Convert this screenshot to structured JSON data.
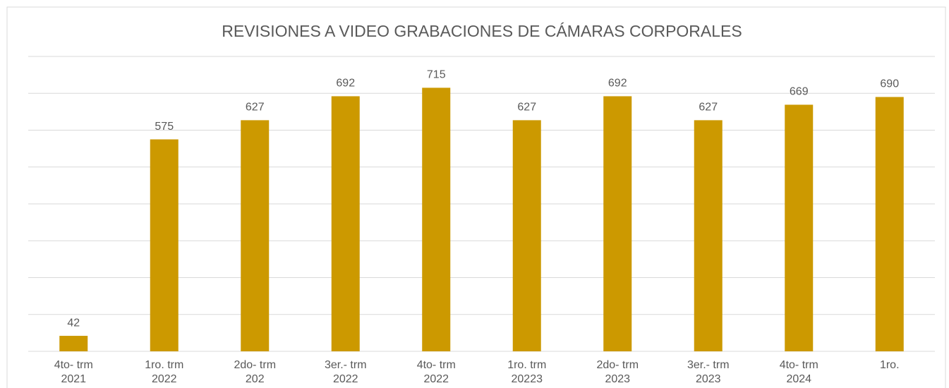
{
  "chart_data": {
    "type": "bar",
    "title": "REVISIONES A VIDEO GRABACIONES DE CÁMARAS CORPORALES",
    "categories": [
      "4to- trm\n2021",
      "1ro. trm\n2022",
      "2do- trm\n202",
      "3er.- trm\n2022",
      "4to- trm\n2022",
      "1ro. trm\n20223",
      "2do- trm\n2023",
      "3er.- trm\n2023",
      "4to- trm\n2024",
      "1ro."
    ],
    "values": [
      42,
      575,
      627,
      692,
      715,
      627,
      692,
      627,
      669,
      690
    ],
    "color": "#cc9900",
    "ylim": [
      0,
      800
    ],
    "yticks": [
      0,
      100,
      200,
      300,
      400,
      500,
      600,
      700,
      800
    ],
    "grid": true
  }
}
